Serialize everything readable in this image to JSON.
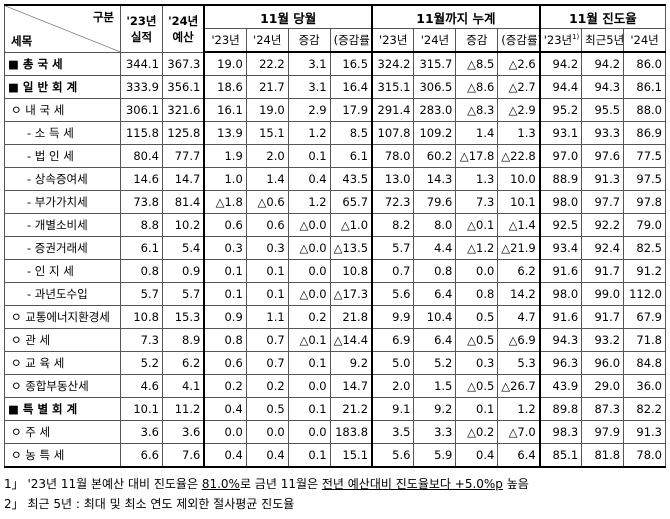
{
  "header": {
    "corner_top": "구분",
    "corner_bottom": "세목",
    "actual": "'23년 실적",
    "budget": "'24년 예산",
    "groups": [
      "11월 당월",
      "11월까지 누계",
      "11월 진도율"
    ],
    "month_sub": [
      "'23년",
      "'24년",
      "증감",
      "(증감률)"
    ],
    "cum_sub": [
      "'23년",
      "'24년",
      "증감",
      "(증감률)"
    ],
    "progress_sub": [
      {
        "text": "'23년",
        "note": "1)"
      },
      {
        "text": "최근5년",
        "note": "2)"
      },
      {
        "text": "'24년"
      }
    ]
  },
  "table": {
    "rows": [
      [
        "■ 총 국 세",
        "344.1",
        "367.3",
        "19.0",
        "22.2",
        "3.1",
        "16.5",
        "324.2",
        "315.7",
        "△8.5",
        "△2.6",
        "94.2",
        "94.2",
        "86.0"
      ],
      [
        "■ 일 반 회 계",
        "333.9",
        "356.1",
        "18.6",
        "21.7",
        "3.1",
        "16.4",
        "315.1",
        "306.5",
        "△8.6",
        "△2.7",
        "94.4",
        "94.3",
        "86.1"
      ],
      [
        "ㅇ 내 국 세",
        "306.1",
        "321.6",
        "16.1",
        "19.0",
        "2.9",
        "17.9",
        "291.4",
        "283.0",
        "△8.3",
        "△2.9",
        "95.2",
        "95.5",
        "88.0"
      ],
      [
        "- 소 득 세",
        "115.8",
        "125.8",
        "13.9",
        "15.1",
        "1.2",
        "8.5",
        "107.8",
        "109.2",
        "1.4",
        "1.3",
        "93.1",
        "93.3",
        "86.9"
      ],
      [
        "- 법 인 세",
        "80.4",
        "77.7",
        "1.9",
        "2.0",
        "0.1",
        "6.1",
        "78.0",
        "60.2",
        "△17.8",
        "△22.8",
        "97.0",
        "97.6",
        "77.5"
      ],
      [
        "- 상속증여세",
        "14.6",
        "14.7",
        "1.0",
        "1.4",
        "0.4",
        "43.5",
        "13.0",
        "14.3",
        "1.3",
        "10.0",
        "88.9",
        "91.3",
        "97.5"
      ],
      [
        "- 부가가치세",
        "73.8",
        "81.4",
        "△1.8",
        "△0.6",
        "1.2",
        "65.7",
        "72.3",
        "79.6",
        "7.3",
        "10.1",
        "98.0",
        "97.7",
        "97.8"
      ],
      [
        "- 개별소비세",
        "8.8",
        "10.2",
        "0.6",
        "0.6",
        "△0.0",
        "△1.0",
        "8.2",
        "8.0",
        "△0.1",
        "△1.4",
        "92.5",
        "92.2",
        "79.0"
      ],
      [
        "- 증권거래세",
        "6.1",
        "5.4",
        "0.3",
        "0.3",
        "△0.0",
        "△13.5",
        "5.7",
        "4.4",
        "△1.2",
        "△21.9",
        "93.4",
        "92.4",
        "82.5"
      ],
      [
        "- 인 지 세",
        "0.8",
        "0.9",
        "0.1",
        "0.1",
        "0.0",
        "10.8",
        "0.7",
        "0.8",
        "0.0",
        "6.2",
        "91.6",
        "91.7",
        "91.2"
      ],
      [
        "- 과년도수입",
        "5.7",
        "5.7",
        "0.1",
        "0.1",
        "△0.0",
        "△17.3",
        "5.6",
        "6.4",
        "0.8",
        "14.2",
        "98.0",
        "99.0",
        "112.0"
      ],
      [
        "ㅇ 교통에너지환경세",
        "10.8",
        "15.3",
        "0.9",
        "1.1",
        "0.2",
        "21.8",
        "9.9",
        "10.4",
        "0.5",
        "4.7",
        "91.6",
        "91.7",
        "67.9"
      ],
      [
        "ㅇ 관 세",
        "7.3",
        "8.9",
        "0.8",
        "0.7",
        "△0.1",
        "△14.4",
        "6.9",
        "6.4",
        "△0.5",
        "△6.9",
        "94.3",
        "93.2",
        "71.8"
      ],
      [
        "ㅇ 교 육 세",
        "5.2",
        "6.2",
        "0.6",
        "0.7",
        "0.1",
        "9.2",
        "5.0",
        "5.2",
        "0.3",
        "5.3",
        "96.3",
        "96.0",
        "84.8"
      ],
      [
        "ㅇ 종합부동산세",
        "4.6",
        "4.1",
        "0.2",
        "0.2",
        "0.0",
        "14.7",
        "2.0",
        "1.5",
        "△0.5",
        "△26.7",
        "43.9",
        "29.0",
        "36.0"
      ],
      [
        "■ 특 별 회 계",
        "10.1",
        "11.2",
        "0.4",
        "0.5",
        "0.1",
        "21.2",
        "9.1",
        "9.2",
        "0.1",
        "1.2",
        "89.8",
        "87.3",
        "82.2"
      ],
      [
        "ㅇ 주 세",
        "3.6",
        "3.6",
        "0.0",
        "0.0",
        "0.0",
        "183.8",
        "3.5",
        "3.3",
        "△0.2",
        "△7.0",
        "98.3",
        "97.9",
        "91.3"
      ],
      [
        "ㅇ 농 특 세",
        "6.6",
        "7.6",
        "0.4",
        "0.4",
        "0.1",
        "15.1",
        "5.6",
        "5.9",
        "0.4",
        "6.4",
        "85.1",
        "81.8",
        "78.0"
      ]
    ]
  },
  "notes": [
    {
      "marker": "1」",
      "parts": [
        "'23년 11월 본예산 대비 진도율은 ",
        "81.0%",
        "로 금년 11월은 ",
        "전년 예산대비 진도율보다 +5.0%p",
        " 높음"
      ]
    },
    {
      "marker": "2」",
      "parts": [
        "최근 5년 : 최대 및 최소 연도 제외한 절사평균 진도율"
      ]
    }
  ]
}
